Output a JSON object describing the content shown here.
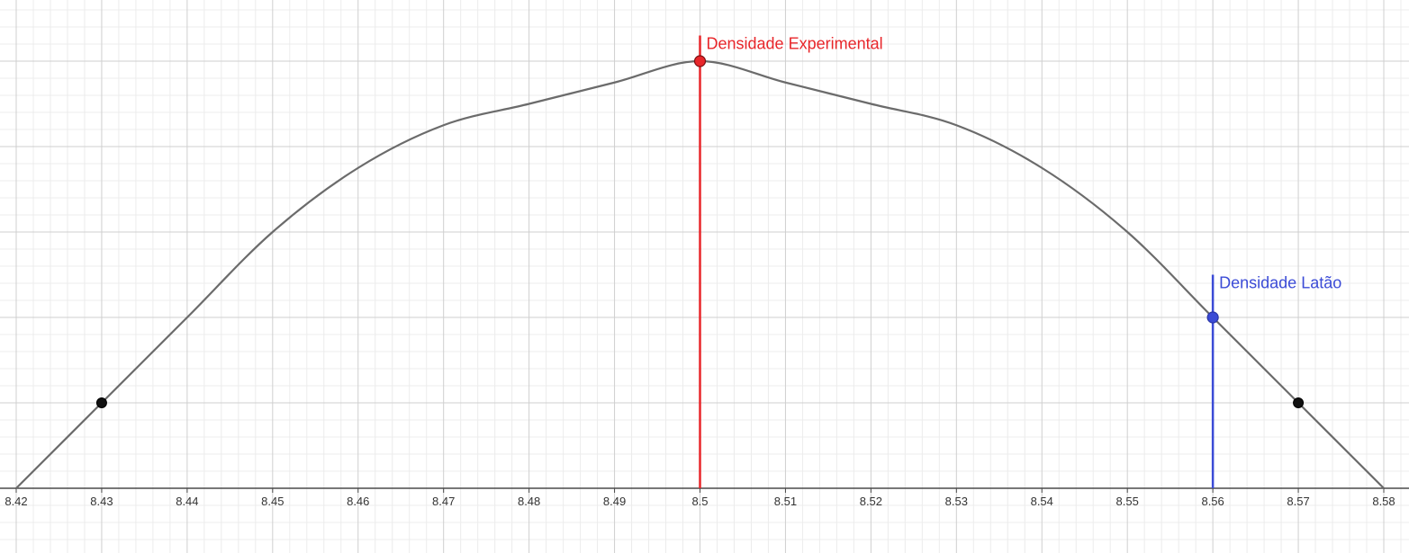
{
  "chart_data": {
    "type": "line",
    "title": "",
    "xlabel": "",
    "ylabel": "",
    "xlim": [
      8.42,
      8.58
    ],
    "ylim": [
      -0.7,
      5.0
    ],
    "grid": true,
    "x_ticks": [
      "8.42",
      "8.43",
      "8.44",
      "8.45",
      "8.46",
      "8.47",
      "8.48",
      "8.49",
      "8.5",
      "8.51",
      "8.52",
      "8.53",
      "8.54",
      "8.55",
      "8.56",
      "8.57",
      "8.58"
    ],
    "curve": {
      "color": "#6b6b6b",
      "x": [
        8.42,
        8.43,
        8.44,
        8.45,
        8.46,
        8.47,
        8.48,
        8.49,
        8.5,
        8.51,
        8.52,
        8.53,
        8.54,
        8.55,
        8.56,
        8.57,
        8.58
      ],
      "y": [
        0.0,
        1.0,
        2.0,
        3.0,
        3.75,
        4.25,
        4.5,
        4.75,
        5.0,
        4.75,
        4.5,
        4.25,
        3.75,
        3.0,
        2.0,
        1.0,
        0.0
      ]
    },
    "points": [
      {
        "x": 8.43,
        "y": 1.0,
        "color": "#111111"
      },
      {
        "x": 8.57,
        "y": 1.0,
        "color": "#111111"
      }
    ],
    "markers": [
      {
        "label": "Densidade Experimental",
        "x": 8.5,
        "y_point": 5.0,
        "y_top": 5.3,
        "color": "#e8262a"
      },
      {
        "label": "Densidade Latão",
        "x": 8.56,
        "y_point": 2.0,
        "y_top": 2.5,
        "color": "#3b4bd6"
      }
    ],
    "colors": {
      "grid_major": "#cfcfcf",
      "grid_minor": "#ececec",
      "axis": "#4a4a4a"
    }
  }
}
